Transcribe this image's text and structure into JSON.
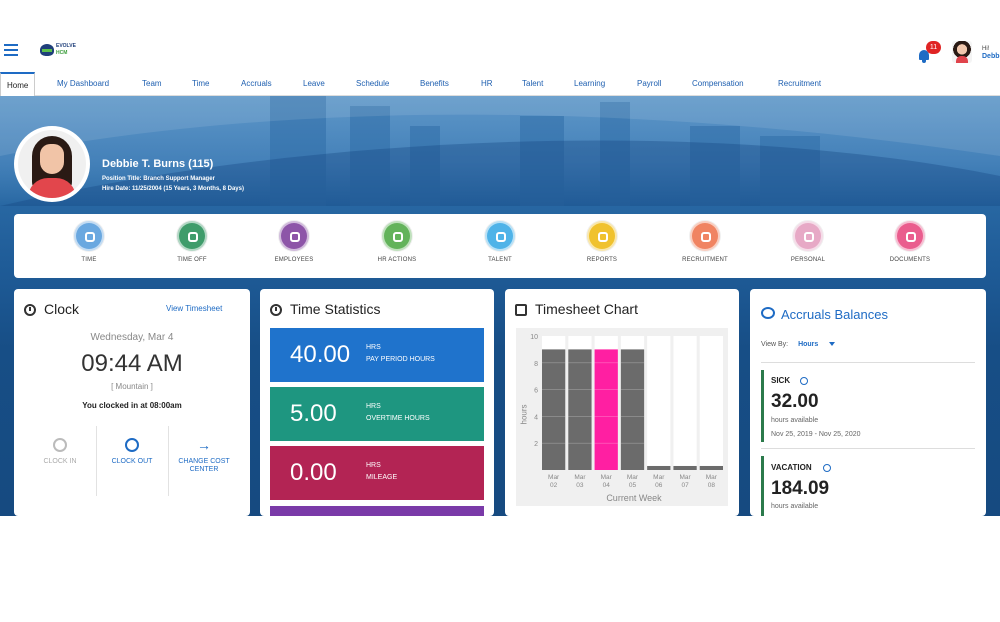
{
  "header": {
    "logo_line1": "EVOLVE",
    "logo_line2": "HCM",
    "notification_count": "11",
    "greeting": "Hi!",
    "user_first": "Debbi"
  },
  "tabs": [
    "Home",
    "My Dashboard",
    "Team",
    "Time",
    "Accruals",
    "Leave",
    "Schedule",
    "Benefits",
    "HR",
    "Talent",
    "Learning",
    "Payroll",
    "Compensation",
    "Recruitment"
  ],
  "profile": {
    "name": "Debbie T. Burns (115)",
    "position": "Position Title: Branch Support Manager",
    "hire": "Hire Date: 11/25/2004 (15 Years, 3 Months, 8 Days)"
  },
  "quick_nav": [
    {
      "label": "TIME",
      "color": "#6aa8e0",
      "icon": "gauge-icon"
    },
    {
      "label": "TIME OFF",
      "color": "#3f9c6b",
      "icon": "clock-off-icon"
    },
    {
      "label": "EMPLOYEES",
      "color": "#8d55a8",
      "icon": "people-icon"
    },
    {
      "label": "HR ACTIONS",
      "color": "#63b35b",
      "icon": "hr-actions-icon"
    },
    {
      "label": "TALENT",
      "color": "#4fb3e8",
      "icon": "star-icon"
    },
    {
      "label": "REPORTS",
      "color": "#f0c22e",
      "icon": "report-icon"
    },
    {
      "label": "RECRUITMENT",
      "color": "#f08462",
      "icon": "recruit-icon"
    },
    {
      "label": "PERSONAL",
      "color": "#e7a9c6",
      "icon": "person-icon"
    },
    {
      "label": "DOCUMENTS",
      "color": "#ea5d8e",
      "icon": "document-icon"
    }
  ],
  "clock": {
    "title": "Clock",
    "view_link": "View Timesheet",
    "date": "Wednesday, Mar 4",
    "time": "09:44 AM",
    "zone": "[ Mountain ]",
    "status": "You clocked in at 08:00am",
    "buttons": [
      {
        "label": "CLOCK IN",
        "enabled": false
      },
      {
        "label": "CLOCK OUT",
        "enabled": true
      },
      {
        "label": "CHANGE COST CENTER",
        "enabled": true
      }
    ]
  },
  "time_stats": {
    "title": "Time Statistics",
    "items": [
      {
        "value": "40.00",
        "unit": "HRS",
        "label": "PAY PERIOD HOURS",
        "color": "#1f73cc"
      },
      {
        "value": "5.00",
        "unit": "HRS",
        "label": "OVERTIME HOURS",
        "color": "#1e9680"
      },
      {
        "value": "0.00",
        "unit": "HRS",
        "label": "MILEAGE",
        "color": "#b32454"
      }
    ],
    "next_color": "#7a3aa8"
  },
  "timesheet_chart": {
    "title": "Timesheet Chart",
    "ylabel": "hours",
    "xlabel": "Current Week"
  },
  "chart_data": {
    "type": "bar",
    "title": "Timesheet Chart",
    "xlabel": "Current Week",
    "ylabel": "hours",
    "ylim": [
      0,
      10
    ],
    "yticks": [
      "10",
      "8",
      "6",
      "4",
      "2"
    ],
    "categories": [
      "Mar\n02",
      "Mar\n03",
      "Mar\n04",
      "Mar\n05",
      "Mar\n06",
      "Mar\n07",
      "Mar\n08"
    ],
    "values": [
      9,
      9,
      9,
      9,
      0.3,
      0.3,
      0.3
    ],
    "colors": [
      "#6b6b6b",
      "#6b6b6b",
      "#ff1fa2",
      "#6b6b6b",
      "#6b6b6b",
      "#6b6b6b",
      "#6b6b6b"
    ],
    "grid": true
  },
  "accruals": {
    "title": "Accruals Balances",
    "view_by_label": "View By:",
    "view_by_value": "Hours",
    "items": [
      {
        "type": "SICK",
        "value": "32.00",
        "sub": "hours available",
        "range": "Nov 25, 2019 - Nov 25, 2020"
      },
      {
        "type": "VACATION",
        "value": "184.09",
        "sub": "hours available",
        "range": ""
      }
    ]
  }
}
